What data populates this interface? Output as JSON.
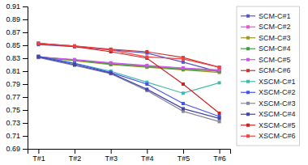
{
  "chart_data": {
    "type": "line",
    "categories": [
      "T#1",
      "T#2",
      "T#3",
      "T#4",
      "T#5",
      "T#6"
    ],
    "series": [
      {
        "name": "SCM-C#1",
        "color": "#5555cc",
        "values": [
          0.851,
          0.848,
          0.843,
          0.838,
          0.824,
          0.809
        ]
      },
      {
        "name": "SCM-C#2",
        "color": "#ee55cc",
        "values": [
          0.832,
          0.827,
          0.822,
          0.818,
          0.814,
          0.811
        ]
      },
      {
        "name": "SCM-C#3",
        "color": "#999922",
        "values": [
          0.832,
          0.826,
          0.82,
          0.816,
          0.812,
          0.808
        ]
      },
      {
        "name": "SCM-C#4",
        "color": "#449944",
        "values": [
          0.832,
          0.827,
          0.821,
          0.817,
          0.813,
          0.81
        ]
      },
      {
        "name": "SCM-C#5",
        "color": "#cc55ee",
        "values": [
          0.832,
          0.828,
          0.823,
          0.819,
          0.815,
          0.812
        ]
      },
      {
        "name": "SCM-C#6",
        "color": "#cc3333",
        "values": [
          0.853,
          0.849,
          0.844,
          0.84,
          0.831,
          0.816
        ]
      },
      {
        "name": "XSCM-C#1",
        "color": "#44bbaa",
        "values": [
          0.833,
          0.822,
          0.81,
          0.793,
          0.776,
          0.792
        ]
      },
      {
        "name": "XSCM-C#2",
        "color": "#4455ee",
        "values": [
          0.833,
          0.822,
          0.808,
          0.79,
          0.76,
          0.74
        ]
      },
      {
        "name": "XSCM-C#3",
        "color": "#888899",
        "values": [
          0.831,
          0.819,
          0.806,
          0.78,
          0.748,
          0.732
        ]
      },
      {
        "name": "XSCM-C#4",
        "color": "#4444aa",
        "values": [
          0.832,
          0.82,
          0.807,
          0.782,
          0.752,
          0.737
        ]
      },
      {
        "name": "XSCM-C#5",
        "color": "#cc2222",
        "values": [
          0.853,
          0.848,
          0.84,
          0.83,
          0.79,
          0.745
        ]
      },
      {
        "name": "XSCM-C#6",
        "color": "#ee4444",
        "values": [
          0.853,
          0.849,
          0.843,
          0.832,
          0.829,
          0.816
        ]
      }
    ],
    "marker": "square",
    "line_style": "solid",
    "ylim": [
      0.69,
      0.91
    ],
    "yticks": [
      0.69,
      0.71,
      0.73,
      0.75,
      0.77,
      0.79,
      0.81,
      0.83,
      0.85,
      0.87,
      0.89,
      0.91
    ],
    "grid": false,
    "legend": "right"
  }
}
